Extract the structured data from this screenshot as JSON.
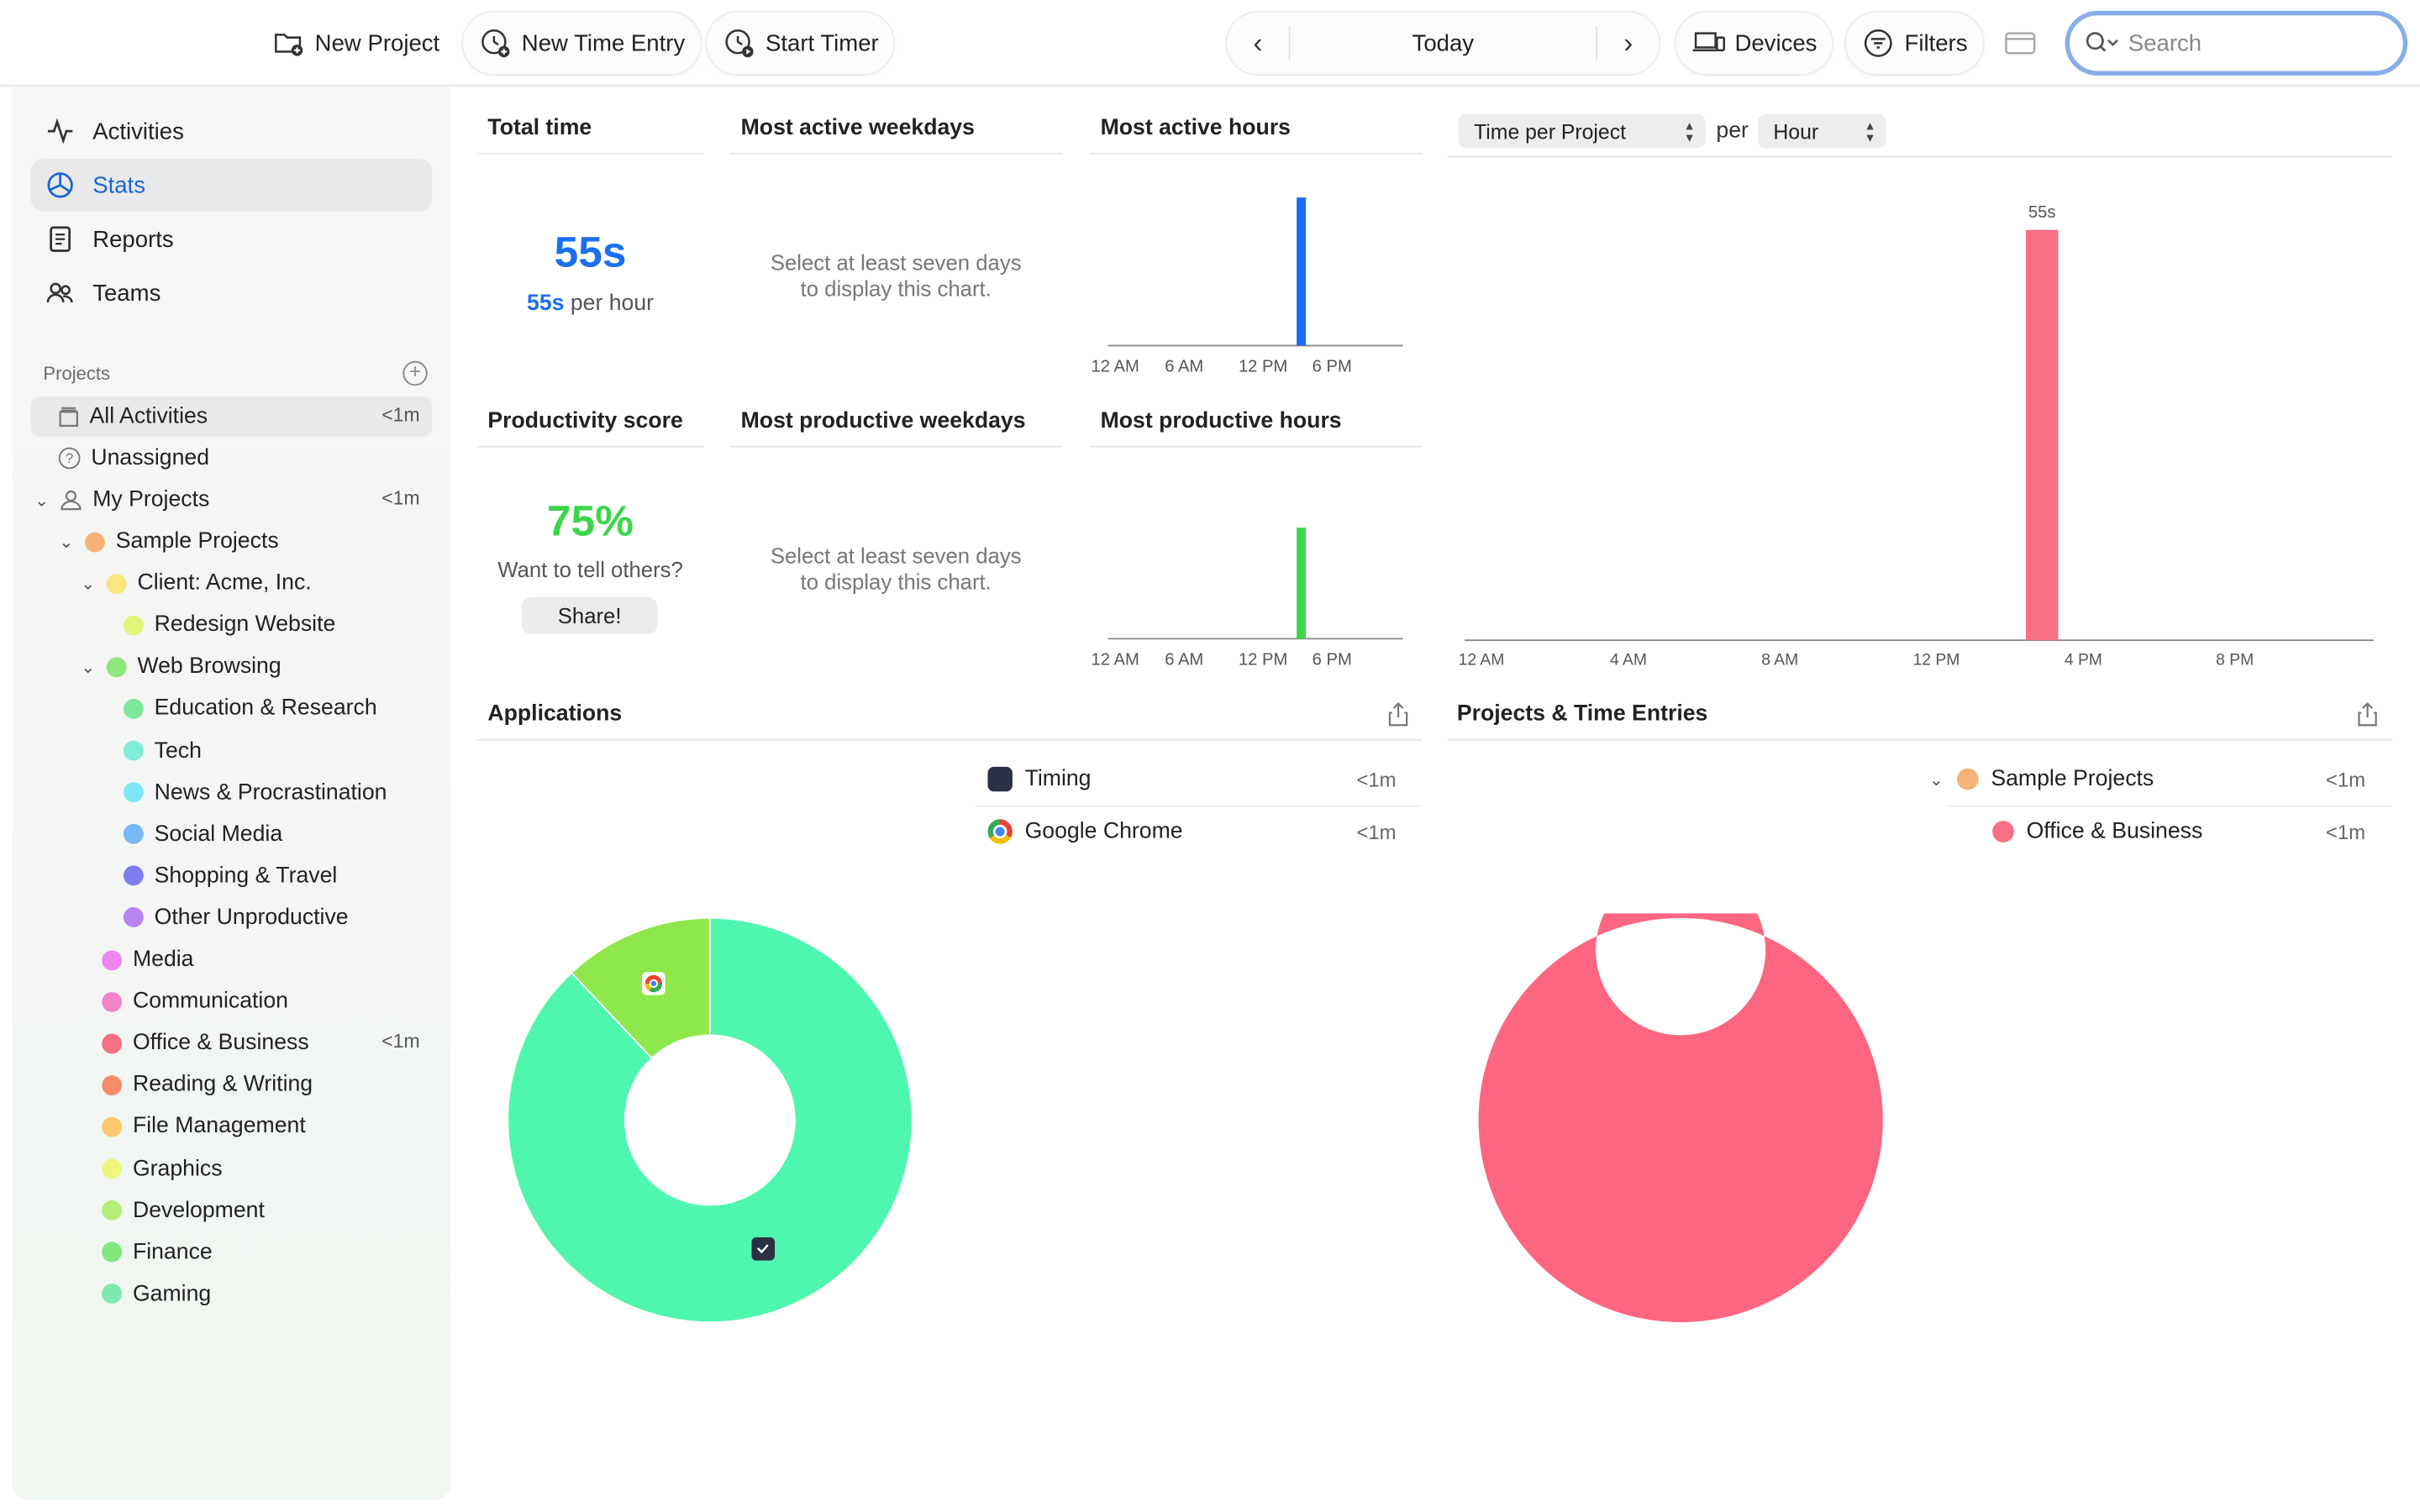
{
  "toolbar": {
    "new_project": "New Project",
    "new_time_entry": "New Time Entry",
    "start_timer": "Start Timer",
    "date_label": "Today",
    "devices": "Devices",
    "filters": "Filters",
    "search_placeholder": "Search"
  },
  "sidebar": {
    "nav": [
      {
        "label": "Activities",
        "icon": "activity-icon"
      },
      {
        "label": "Stats",
        "icon": "stats-icon",
        "active": true
      },
      {
        "label": "Reports",
        "icon": "reports-icon"
      },
      {
        "label": "Teams",
        "icon": "teams-icon"
      }
    ],
    "projects_title": "Projects",
    "all_activities": {
      "label": "All Activities",
      "duration": "<1m"
    },
    "unassigned": {
      "label": "Unassigned"
    },
    "my_projects": {
      "label": "My Projects",
      "duration": "<1m"
    },
    "tree": [
      {
        "label": "Sample Projects",
        "color": "#f7b27a",
        "level": 1,
        "chevron": true
      },
      {
        "label": "Client: Acme, Inc.",
        "color": "#fbe57c",
        "level": 2,
        "chevron": true
      },
      {
        "label": "Redesign Website",
        "color": "#e3f47a",
        "level": 3
      },
      {
        "label": "Web Browsing",
        "color": "#8ee87a",
        "level": 2,
        "chevron": true
      },
      {
        "label": "Education & Research",
        "color": "#7ee89a",
        "level": 3
      },
      {
        "label": "Tech",
        "color": "#7eecd6",
        "level": 3
      },
      {
        "label": "News & Procrastination",
        "color": "#7ee6f4",
        "level": 3
      },
      {
        "label": "Social Media",
        "color": "#7ab8f6",
        "level": 3
      },
      {
        "label": "Shopping & Travel",
        "color": "#7c7ef0",
        "level": 3
      },
      {
        "label": "Other Unproductive",
        "color": "#b784f2",
        "level": 3
      },
      {
        "label": "Media",
        "color": "#ee84ee",
        "level": 2
      },
      {
        "label": "Communication",
        "color": "#f285cc",
        "level": 2
      },
      {
        "label": "Office & Business",
        "color": "#f66f86",
        "level": 2,
        "duration": "<1m"
      },
      {
        "label": "Reading & Writing",
        "color": "#f78c6c",
        "level": 2
      },
      {
        "label": "File Management",
        "color": "#fbc86e",
        "level": 2
      },
      {
        "label": "Graphics",
        "color": "#f0f67a",
        "level": 2
      },
      {
        "label": "Development",
        "color": "#b4ee7a",
        "level": 2
      },
      {
        "label": "Finance",
        "color": "#80e87c",
        "level": 2
      },
      {
        "label": "Gaming",
        "color": "#7ee8b0",
        "level": 2
      }
    ]
  },
  "cards": {
    "total_time": {
      "title": "Total time",
      "value": "55s",
      "per_value": "55s",
      "per_suffix": " per hour"
    },
    "most_active_weekdays": {
      "title": "Most active weekdays",
      "empty_line1": "Select at least seven days",
      "empty_line2": "to display this chart."
    },
    "most_active_hours": {
      "title": "Most active hours"
    },
    "productivity_score": {
      "title": "Productivity score",
      "value": "75%",
      "subtitle": "Want to tell others?",
      "share": "Share!"
    },
    "most_productive_weekdays": {
      "title": "Most productive weekdays",
      "empty_line1": "Select at least seven days",
      "empty_line2": "to display this chart."
    },
    "most_productive_hours": {
      "title": "Most productive hours"
    },
    "time_per": {
      "metric_select": "Time per Project",
      "per": "per",
      "unit_select": "Hour"
    },
    "applications": {
      "title": "Applications"
    },
    "projects_entries": {
      "title": "Projects & Time Entries"
    }
  },
  "applications": [
    {
      "name": "Timing",
      "duration": "<1m",
      "icon": "timing-app-icon"
    },
    {
      "name": "Google Chrome",
      "duration": "<1m",
      "icon": "chrome-icon"
    }
  ],
  "project_entries": [
    {
      "name": "Sample Projects",
      "duration": "<1m",
      "color": "#f7b27a",
      "chevron": true
    },
    {
      "name": "Office & Business",
      "duration": "<1m",
      "color": "#f66f86"
    }
  ],
  "chart_data": [
    {
      "type": "bar",
      "title": "Most active hours",
      "x_ticks": [
        "12 AM",
        "6 AM",
        "12 PM",
        "6 PM"
      ],
      "series": [
        {
          "values_by_hour": [
            0,
            0,
            0,
            0,
            0,
            0,
            0,
            0,
            0,
            0,
            0,
            0,
            0,
            0,
            0,
            1,
            0,
            0,
            0,
            0,
            0,
            0,
            0,
            0
          ]
        }
      ],
      "color": "#1a6ff0"
    },
    {
      "type": "bar",
      "title": "Most productive hours",
      "x_ticks": [
        "12 AM",
        "6 AM",
        "12 PM",
        "6 PM"
      ],
      "series": [
        {
          "values_by_hour": [
            0,
            0,
            0,
            0,
            0,
            0,
            0,
            0,
            0,
            0,
            0,
            0,
            0,
            0,
            0,
            0.75,
            0,
            0,
            0,
            0,
            0,
            0,
            0,
            0
          ]
        }
      ],
      "color": "#3dd64a"
    },
    {
      "type": "bar",
      "title": "Time per Project per Hour",
      "x_ticks": [
        "12 AM",
        "4 AM",
        "8 AM",
        "12 PM",
        "4 PM",
        "8 PM"
      ],
      "series": [
        {
          "name": "Office & Business",
          "values_by_hour_seconds": [
            0,
            0,
            0,
            0,
            0,
            0,
            0,
            0,
            0,
            0,
            0,
            0,
            0,
            0,
            0,
            55,
            0,
            0,
            0,
            0,
            0,
            0,
            0,
            0
          ]
        }
      ],
      "data_label": "55s",
      "color": "#f66f86"
    },
    {
      "type": "pie",
      "title": "Applications",
      "slices": [
        {
          "name": "Timing",
          "value": 88,
          "color": "#4ef7ad"
        },
        {
          "name": "Google Chrome",
          "value": 12,
          "color": "#8fe84b"
        }
      ]
    },
    {
      "type": "pie",
      "title": "Projects & Time Entries",
      "slices": [
        {
          "name": "Office & Business",
          "value": 100,
          "color": "#fd6680"
        }
      ]
    }
  ]
}
